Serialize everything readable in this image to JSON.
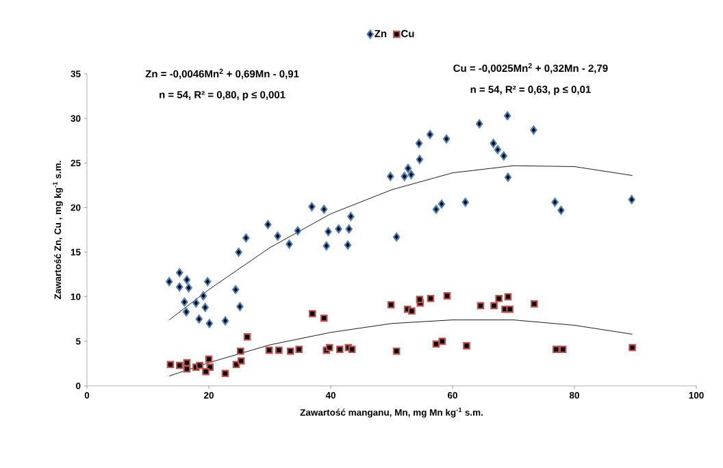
{
  "chart_data": {
    "type": "scatter",
    "xlabel": "Zawartość manganu, Mn, mg Mn kg$^{-1}$ s.m.",
    "ylabel": "Zawartość Zn, Cu , mg kg$^{-1}$ s.m.",
    "xlim": [
      0,
      100
    ],
    "ylim": [
      0,
      35
    ],
    "xticks": [
      0,
      20,
      40,
      60,
      80,
      100
    ],
    "yticks": [
      0,
      5,
      10,
      15,
      20,
      25,
      30,
      35
    ],
    "grid": false,
    "legend": "top",
    "annotations": [
      "Zn = -0,0046Mn$^{2}$ + 0,69Mn - 0,91",
      "n = 54, R² = 0,80, p ≤ 0,001",
      "Cu = -0,0025Mn$^{2}$ + 0,32Mn - 2,79",
      "n = 54, R² = 0,63, p ≤ 0,01"
    ],
    "series": [
      {
        "name": "Zn",
        "marker": "diamond",
        "color": "#4f81bd",
        "x": [
          13.5,
          15.2,
          16.4,
          15.2,
          16.7,
          19.8,
          19.1,
          16.0,
          17.9,
          19.4,
          16.3,
          18.4,
          20.1,
          22.7,
          24.4,
          25.1,
          24.9,
          26.1,
          29.7,
          31.3,
          33.2,
          34.6,
          36.9,
          38.9,
          43.3,
          39.6,
          41.3,
          43.0,
          39.3,
          42.8,
          49.8,
          50.8,
          52.1,
          52.7,
          53.2,
          54.6,
          54.5,
          56.3,
          59.0,
          57.3,
          58.2,
          62.1,
          64.4,
          66.7,
          67.4,
          68.4,
          69.0,
          69.1,
          73.3,
          76.8,
          77.8,
          89.4
        ],
        "values": [
          11.7,
          12.7,
          11.9,
          11.1,
          11.0,
          11.7,
          10.1,
          9.4,
          9.3,
          8.8,
          8.3,
          7.5,
          7.0,
          7.3,
          10.8,
          8.9,
          15.0,
          16.6,
          18.1,
          16.8,
          15.9,
          17.4,
          20.1,
          19.8,
          19.0,
          17.3,
          17.6,
          17.6,
          15.7,
          15.8,
          23.5,
          16.7,
          23.5,
          24.4,
          23.7,
          25.4,
          27.2,
          28.2,
          27.7,
          19.8,
          20.4,
          20.6,
          29.4,
          27.2,
          26.5,
          25.8,
          30.3,
          23.4,
          28.7,
          20.6,
          19.7,
          20.9
        ]
      },
      {
        "name": "Cu",
        "marker": "square",
        "color": "#c0504d",
        "x": [
          13.7,
          15.2,
          16.4,
          16.4,
          17.9,
          18.5,
          20.0,
          20.2,
          19.5,
          22.7,
          24.5,
          25.2,
          25.3,
          26.3,
          29.9,
          31.5,
          33.4,
          34.8,
          37.0,
          38.9,
          39.3,
          39.8,
          41.5,
          42.9,
          43.5,
          49.9,
          50.8,
          52.6,
          53.3,
          54.7,
          54.6,
          56.4,
          59.1,
          57.3,
          58.3,
          62.3,
          64.6,
          66.8,
          67.6,
          69.1,
          68.6,
          69.4,
          73.4,
          77.0,
          78.1,
          89.5
        ],
        "values": [
          2.4,
          2.3,
          2.6,
          1.9,
          2.1,
          2.3,
          3.0,
          2.1,
          1.6,
          1.4,
          2.4,
          3.9,
          2.8,
          5.5,
          4.0,
          4.0,
          3.9,
          4.1,
          8.1,
          7.6,
          4.0,
          4.3,
          4.1,
          4.3,
          4.1,
          9.1,
          3.9,
          8.6,
          8.4,
          9.3,
          9.7,
          9.8,
          10.1,
          4.7,
          5.0,
          4.5,
          9.0,
          9.0,
          9.8,
          10.0,
          8.6,
          8.6,
          9.2,
          4.1,
          4.1,
          4.3
        ]
      },
      {
        "type": "line",
        "marker": "none",
        "line_style": "solid",
        "color": "#000000",
        "x": [
          13.5,
          20,
          30,
          40,
          50,
          60,
          70,
          80,
          89.5
        ],
        "values": [
          7.4,
          10.8,
          15.5,
          19.3,
          22.0,
          23.9,
          24.7,
          24.6,
          23.6
        ]
      },
      {
        "type": "line",
        "marker": "none",
        "line_style": "solid",
        "color": "#000000",
        "x": [
          13.5,
          20,
          30,
          40,
          50,
          60,
          70,
          80,
          89.5
        ],
        "values": [
          1.1,
          2.6,
          4.6,
          6.0,
          7.0,
          7.4,
          7.4,
          6.8,
          5.8
        ]
      }
    ]
  }
}
